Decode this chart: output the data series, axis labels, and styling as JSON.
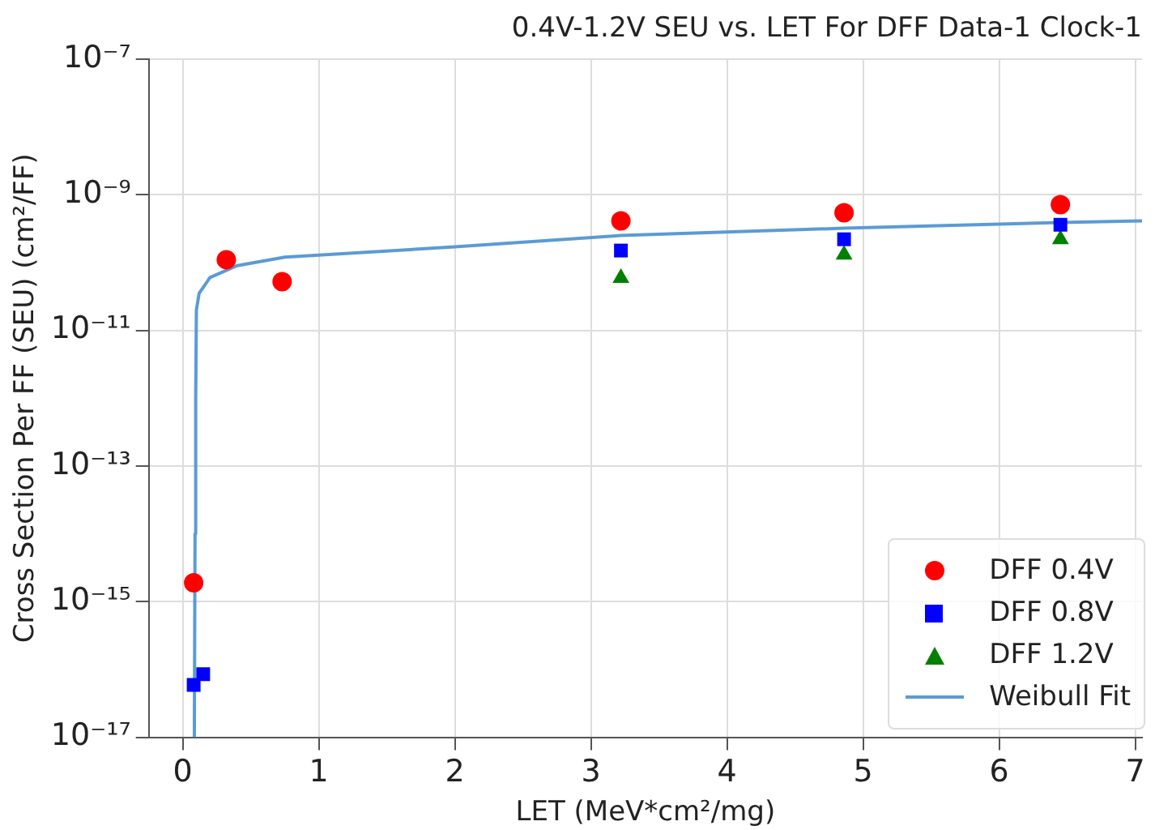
{
  "chart_data": {
    "type": "scatter",
    "title": "0.4V-1.2V SEU vs. LET For DFF Data-1 Clock-1",
    "xlabel": "LET (MeV*cm²/mg)",
    "ylabel": "Cross Section Per FF (SEU) (cm²/FF)",
    "log": "y",
    "grid": true,
    "legend": "bottom right",
    "xlim": [
      -0.25,
      7.05
    ],
    "xticks": [
      0,
      1,
      2,
      3,
      4,
      5,
      6,
      7
    ],
    "ylim": [
      1e-17,
      1e-07
    ],
    "yticks": [
      {
        "value": 1e-17,
        "label": "10⁻¹⁷"
      },
      {
        "value": 1e-15,
        "label": "10⁻¹⁵"
      },
      {
        "value": 1e-13,
        "label": "10⁻¹³"
      },
      {
        "value": 1e-11,
        "label": "10⁻¹¹"
      },
      {
        "value": 1e-09,
        "label": "10⁻⁹"
      },
      {
        "value": 1e-07,
        "label": "10⁻⁷"
      }
    ],
    "series": [
      {
        "name": "DFF 0.4V",
        "marker": "circle",
        "color": "#ff0000",
        "x": [
          0.08,
          0.32,
          0.73,
          3.22,
          4.86,
          6.45
        ],
        "values": [
          1.9e-15,
          1.1e-10,
          5.2e-11,
          4.1e-10,
          5.4e-10,
          7.1e-10
        ]
      },
      {
        "name": "DFF 0.8V",
        "marker": "square",
        "color": "#0000ff",
        "x": [
          0.08,
          0.15,
          3.22,
          4.86,
          6.45
        ],
        "values": [
          5.9e-17,
          8.5e-17,
          1.5e-10,
          2.2e-10,
          3.6e-10
        ]
      },
      {
        "name": "DFF 1.2V",
        "marker": "triangle",
        "color": "#008000",
        "x": [
          3.22,
          4.86,
          6.45
        ],
        "values": [
          5.9e-11,
          1.3e-10,
          2.2e-10
        ]
      },
      {
        "name": "Weibull Fit",
        "type": "line",
        "marker": "none",
        "color": "#5b9bd5",
        "x": [
          0.085,
          0.09,
          0.095,
          0.1,
          0.12,
          0.2,
          0.4,
          0.75,
          2,
          3.22,
          4.86,
          6.45,
          7.05
        ],
        "values": [
          1e-17,
          1e-14,
          1e-12,
          2e-11,
          3.5e-11,
          6e-11,
          9e-11,
          1.2e-10,
          1.7e-10,
          2.5e-10,
          3.2e-10,
          3.9e-10,
          4.1e-10
        ]
      }
    ]
  }
}
